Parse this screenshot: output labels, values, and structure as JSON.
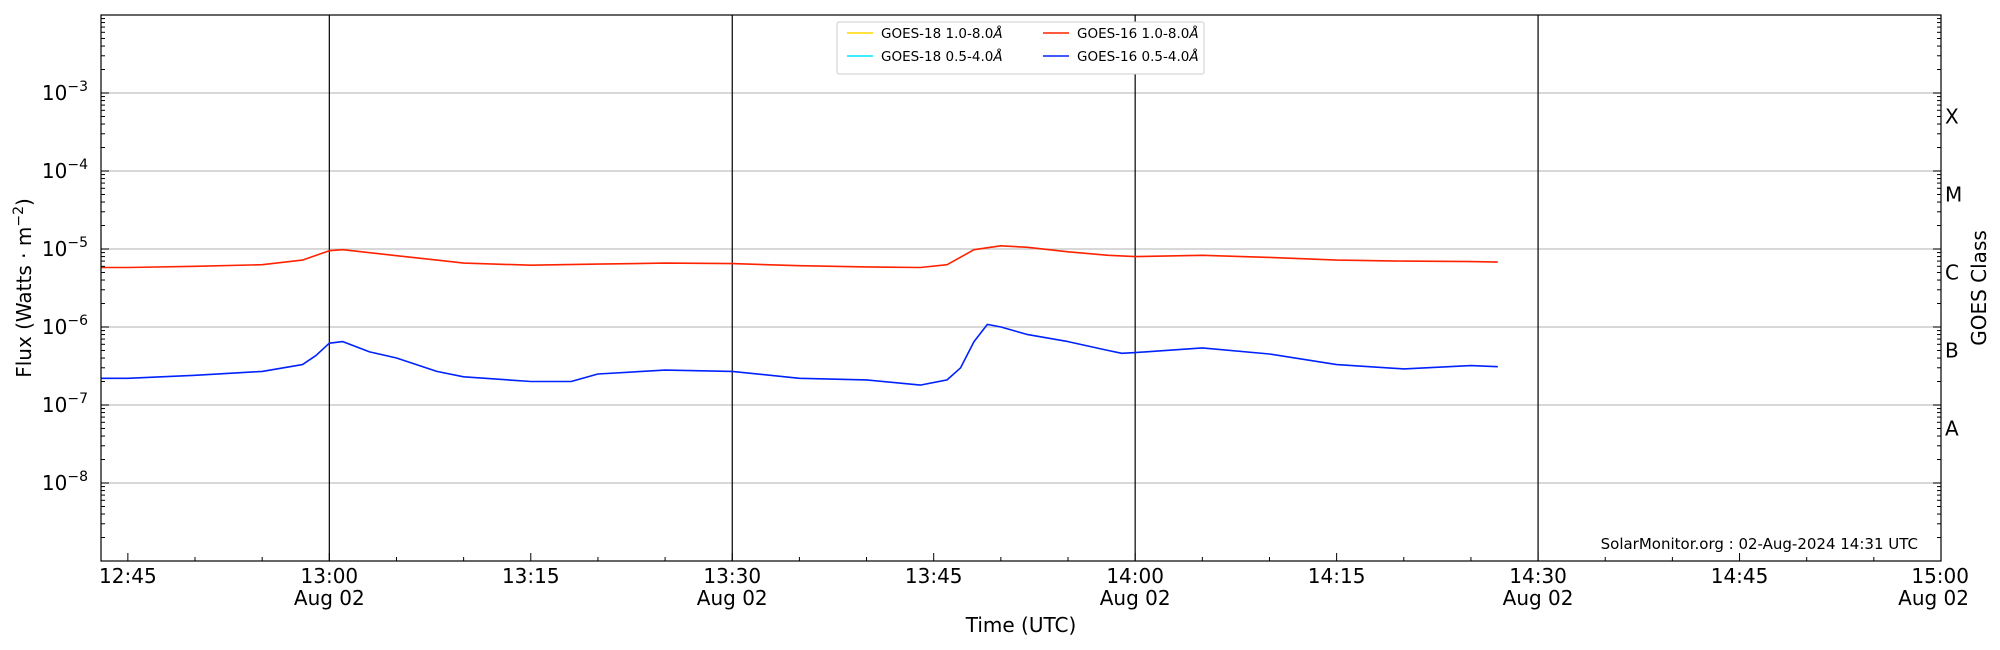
{
  "chart_data": {
    "type": "line",
    "xlabel": "Time (UTC)",
    "ylabel_main": "Flux (Watts · m",
    "ylabel_sup": "−2",
    "ylabel_close": ")",
    "ylabel_right": "GOES Class",
    "y_scale": "log",
    "ylim": [
      1e-09,
      0.01
    ],
    "xlim": [
      "12:43",
      "15:00"
    ],
    "grid": "horizontal",
    "legend_position": "top-center",
    "credit": "SolarMonitor.org : 02-Aug-2024 14:31 UTC",
    "x_ticks": [
      {
        "time": "12:45",
        "label": "12:45",
        "date": ""
      },
      {
        "time": "13:00",
        "label": "13:00",
        "date": "Aug 02"
      },
      {
        "time": "13:15",
        "label": "13:15",
        "date": ""
      },
      {
        "time": "13:30",
        "label": "13:30",
        "date": "Aug 02"
      },
      {
        "time": "13:45",
        "label": "13:45",
        "date": ""
      },
      {
        "time": "14:00",
        "label": "14:00",
        "date": "Aug 02"
      },
      {
        "time": "14:15",
        "label": "14:15",
        "date": ""
      },
      {
        "time": "14:30",
        "label": "14:30",
        "date": "Aug 02"
      },
      {
        "time": "14:45",
        "label": "14:45",
        "date": ""
      },
      {
        "time": "15:00",
        "label": "15:00",
        "date": "Aug 02"
      }
    ],
    "vlines": [
      "13:00",
      "13:30",
      "14:00",
      "14:30"
    ],
    "y_ticks": [
      {
        "value": 0.001,
        "base": "10",
        "exp": "−3"
      },
      {
        "value": 0.0001,
        "base": "10",
        "exp": "−4"
      },
      {
        "value": 1e-05,
        "base": "10",
        "exp": "−5"
      },
      {
        "value": 1e-06,
        "base": "10",
        "exp": "−6"
      },
      {
        "value": 1e-07,
        "base": "10",
        "exp": "−7"
      },
      {
        "value": 1e-08,
        "base": "10",
        "exp": "−8"
      }
    ],
    "goes_classes": [
      {
        "label": "X",
        "value": 0.0005
      },
      {
        "label": "M",
        "value": 5e-05
      },
      {
        "label": "C",
        "value": 5e-06
      },
      {
        "label": "B",
        "value": 5e-07
      },
      {
        "label": "A",
        "value": 5e-08
      }
    ],
    "series": [
      {
        "name": "GOES-18 1.0-8.0",
        "color": "#ffd700",
        "x": [],
        "y": []
      },
      {
        "name": "GOES-16 1.0-8.0",
        "color": "#ff2200",
        "x": [
          "12:43",
          "12:45",
          "12:50",
          "12:55",
          "12:58",
          "13:00",
          "13:01",
          "13:05",
          "13:08",
          "13:10",
          "13:15",
          "13:20",
          "13:25",
          "13:30",
          "13:35",
          "13:40",
          "13:44",
          "13:46",
          "13:48",
          "13:50",
          "13:52",
          "13:55",
          "13:58",
          "14:00",
          "14:05",
          "14:10",
          "14:15",
          "14:20",
          "14:25",
          "14:27"
        ],
        "y": [
          5.8e-06,
          5.8e-06,
          6e-06,
          6.3e-06,
          7.2e-06,
          9.5e-06,
          9.8e-06,
          8.2e-06,
          7.2e-06,
          6.6e-06,
          6.2e-06,
          6.4e-06,
          6.6e-06,
          6.5e-06,
          6.1e-06,
          5.9e-06,
          5.8e-06,
          6.3e-06,
          9.8e-06,
          1.1e-05,
          1.05e-05,
          9.2e-06,
          8.3e-06,
          8e-06,
          8.3e-06,
          7.8e-06,
          7.2e-06,
          7e-06,
          6.9e-06,
          6.8e-06
        ]
      },
      {
        "name": "GOES-18 0.5-4.0",
        "color": "#00e5ff",
        "x": [],
        "y": []
      },
      {
        "name": "GOES-16 0.5-4.0",
        "color": "#0022ff",
        "x": [
          "12:43",
          "12:45",
          "12:50",
          "12:55",
          "12:58",
          "12:59",
          "13:00",
          "13:01",
          "13:03",
          "13:05",
          "13:08",
          "13:10",
          "13:15",
          "13:18",
          "13:20",
          "13:25",
          "13:30",
          "13:35",
          "13:40",
          "13:44",
          "13:46",
          "13:47",
          "13:48",
          "13:49",
          "13:50",
          "13:52",
          "13:55",
          "13:58",
          "13:59",
          "14:00",
          "14:05",
          "14:10",
          "14:15",
          "14:20",
          "14:25",
          "14:27"
        ],
        "y": [
          2.2e-07,
          2.2e-07,
          2.4e-07,
          2.7e-07,
          3.3e-07,
          4.3e-07,
          6.2e-07,
          6.5e-07,
          4.8e-07,
          4e-07,
          2.7e-07,
          2.3e-07,
          2e-07,
          2e-07,
          2.5e-07,
          2.8e-07,
          2.7e-07,
          2.2e-07,
          2.1e-07,
          1.8e-07,
          2.1e-07,
          3e-07,
          6.5e-07,
          1.08e-06,
          1e-06,
          8e-07,
          6.5e-07,
          5e-07,
          4.6e-07,
          4.7e-07,
          5.4e-07,
          4.5e-07,
          3.3e-07,
          2.9e-07,
          3.2e-07,
          3.1e-07
        ]
      }
    ]
  },
  "legend": {
    "angstrom": "Å",
    "entries": [
      {
        "label": "GOES-18 1.0-8.0",
        "color": "#ffd700"
      },
      {
        "label": "GOES-18 0.5-4.0",
        "color": "#00e5ff"
      },
      {
        "label": "GOES-16 1.0-8.0",
        "color": "#ff2200"
      },
      {
        "label": "GOES-16 0.5-4.0",
        "color": "#0022ff"
      }
    ]
  }
}
